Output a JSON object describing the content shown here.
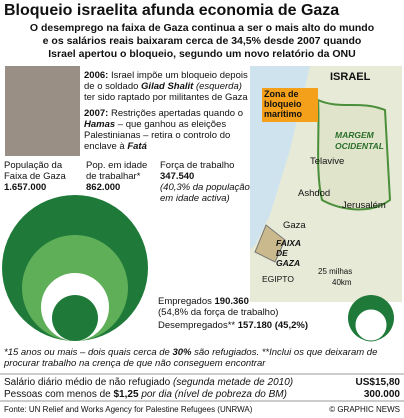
{
  "header": {
    "title": "Bloqueio israelita afunda economia de Gaza",
    "subtitle": [
      "O desemprego na faixa de Gaza continua a ser o mais alto do mundo",
      "e os salários reais baixaram cerca de 34,5% desde 2007 quando",
      "Israel apertou o bloqueio, segundo um novo relatório da ONU"
    ]
  },
  "timeline": [
    {
      "year": "2006:",
      "parts": [
        "Israel impõe um bloqueio depois de o soldado ",
        "Gilad Shalit",
        " (esquerda)",
        " ter sido raptado por militantes de Gaza"
      ]
    },
    {
      "year": "2007:",
      "parts": [
        "Restrições apertadas quando o ",
        "Hamas",
        " – que ganhou as eleições Palestinianas – retira o controlo do enclave à ",
        "Fatá"
      ]
    }
  ],
  "map": {
    "country": "ISRAEL",
    "west_bank": "MARGEM OCIDENTAL",
    "zone": "Zona de bloqueio marítimo",
    "cities": [
      "Telavive",
      "Ashdod",
      "Jerusalém",
      "Gaza"
    ],
    "strip": "FAIXA DE GAZA",
    "egypt": "EGIPTO",
    "scale": [
      "25 milhas",
      "40km"
    ]
  },
  "stats": {
    "population": {
      "label": "População da Faixa de Gaza",
      "value": "1.657.000"
    },
    "working_age": {
      "label": "Pop. em idade de trabalhar*",
      "value": "862.000"
    },
    "labour_force": {
      "label": "Força de trabalho",
      "value": "347.540",
      "note": "(40,3% da população em idade activa)"
    },
    "employed": {
      "label": "Empregados",
      "value": "190.360",
      "note": "(54,8% da força de trabalho)"
    },
    "unemployed": {
      "label": "Desempregados**",
      "value": "157.180",
      "note": "(45,2%)"
    }
  },
  "footnote": [
    "*15 anos ou mais – dois quais cerca de ",
    "30%",
    " são refugiados. **Inclui os que deixaram de procurar trabalho na crença de que não conseguem encontrar"
  ],
  "facts": [
    {
      "text": "Salário diário médio de não refugiado ",
      "note": "(segunda metade de 2010)",
      "value": "US$15,80"
    },
    {
      "text": "Pessoas com menos de ",
      "bold": "$1,25",
      " note": "",
      "note2": "por dia (nível de pobreza do BM)",
      "value": "300.000"
    }
  ],
  "footer": {
    "source": "Fonte: UN Relief and Works Agency for Palestine Refugees (UNRWA)",
    "credit": "© GRAPHIC NEWS"
  }
}
